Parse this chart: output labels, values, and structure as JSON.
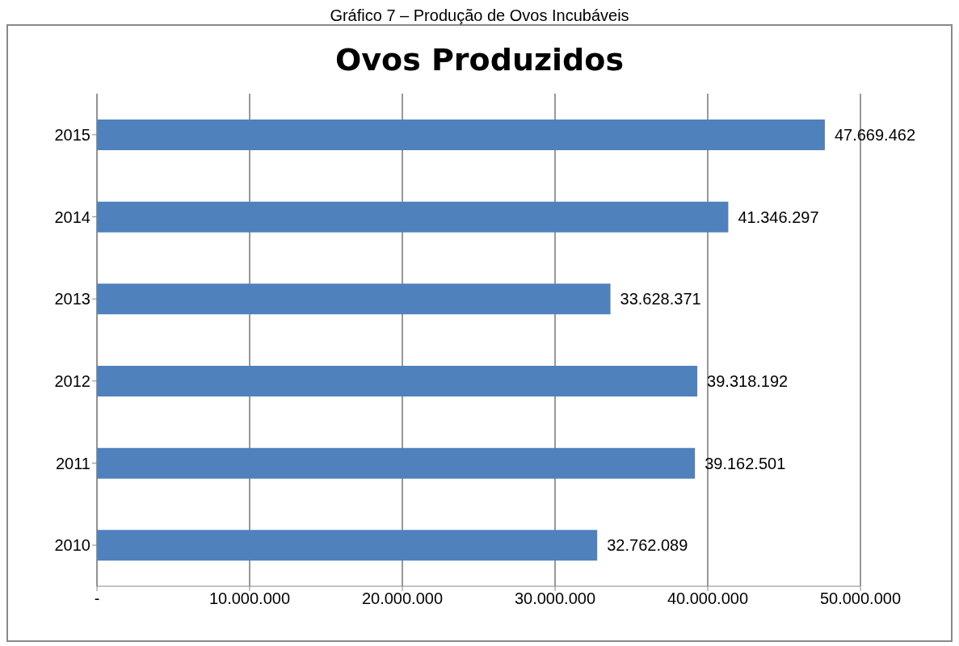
{
  "chart_data": {
    "type": "bar",
    "orientation": "horizontal",
    "title": "Ovos Produzidos",
    "annotations": [
      "Gráfico 7 – Produção de Ovos Incubáveis"
    ],
    "categories": [
      "2015",
      "2014",
      "2013",
      "2012",
      "2011",
      "2010"
    ],
    "values": [
      47669462,
      41346297,
      33628371,
      39318192,
      39162501,
      32762089
    ],
    "value_labels": [
      "47.669.462",
      "41.346.297",
      "33.628.371",
      "39.318.192",
      "39.162.501",
      "32.762.089"
    ],
    "color": "#4f81bd",
    "xlim": [
      0,
      50000000
    ],
    "xticks": [
      {
        "value": 0,
        "label": "-"
      },
      {
        "value": 10000000,
        "label": "10.000.000"
      },
      {
        "value": 20000000,
        "label": "20.000.000"
      },
      {
        "value": 30000000,
        "label": "30.000.000"
      },
      {
        "value": 40000000,
        "label": "40.000.000"
      },
      {
        "value": 50000000,
        "label": "50.000.000"
      }
    ],
    "grid": "x"
  }
}
